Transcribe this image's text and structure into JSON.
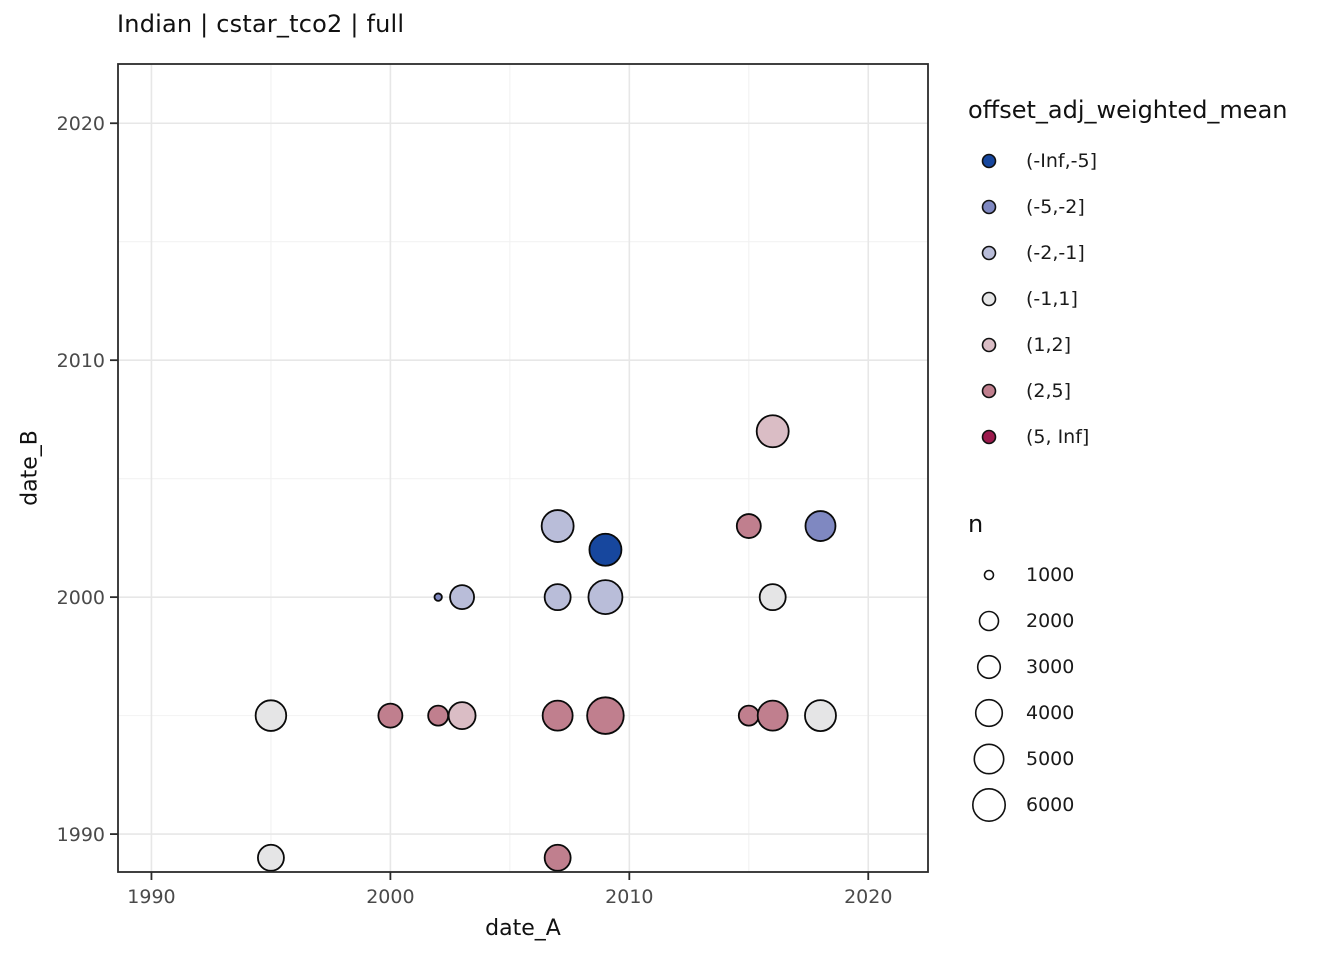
{
  "title": "Indian | cstar_tco2 | full",
  "chart_data": {
    "type": "scatter",
    "title": "Indian | cstar_tco2 | full",
    "xlabel": "date_A",
    "ylabel": "date_B",
    "xlim": [
      1988.6,
      2022.5
    ],
    "ylim": [
      1988.4,
      2022.5
    ],
    "x_major_ticks": [
      1990,
      2000,
      2010,
      2020
    ],
    "y_major_ticks": [
      1990,
      2000,
      2010,
      2020
    ],
    "x_minor_ticks": [
      1995,
      2005,
      2015
    ],
    "y_minor_ticks": [
      1995,
      2005,
      2015
    ],
    "grid": "on",
    "legend_position": "right",
    "points": [
      {
        "date_A": 1995,
        "date_B": 1989,
        "offset_bin": "(-1,1]",
        "n": 3900,
        "radius_px": 13
      },
      {
        "date_A": 2007,
        "date_B": 1989,
        "offset_bin": "(2,5]",
        "n": 3900,
        "radius_px": 13
      },
      {
        "date_A": 1995,
        "date_B": 1995,
        "offset_bin": "(-1,1]",
        "n": 5400,
        "radius_px": 15.3
      },
      {
        "date_A": 2000,
        "date_B": 1995,
        "offset_bin": "(2,5]",
        "n": 3300,
        "radius_px": 12
      },
      {
        "date_A": 2002,
        "date_B": 1995,
        "offset_bin": "(2,5]",
        "n": 2300,
        "radius_px": 10
      },
      {
        "date_A": 2003,
        "date_B": 1995,
        "offset_bin": "(1,2]",
        "n": 4200,
        "radius_px": 13.5
      },
      {
        "date_A": 2007,
        "date_B": 1995,
        "offset_bin": "(2,5]",
        "n": 5200,
        "radius_px": 15
      },
      {
        "date_A": 2009,
        "date_B": 1995,
        "offset_bin": "(2,5]",
        "n": 7700,
        "radius_px": 18.3
      },
      {
        "date_A": 2015,
        "date_B": 1995,
        "offset_bin": "(2,5]",
        "n": 2300,
        "radius_px": 10
      },
      {
        "date_A": 2016,
        "date_B": 1995,
        "offset_bin": "(2,5]",
        "n": 5200,
        "radius_px": 15
      },
      {
        "date_A": 2018,
        "date_B": 1995,
        "offset_bin": "(-1,1]",
        "n": 5500,
        "radius_px": 15.5
      },
      {
        "date_A": 2002,
        "date_B": 2000,
        "offset_bin": "(-5,-2]",
        "n": 300,
        "radius_px": 3.7
      },
      {
        "date_A": 2003,
        "date_B": 2000,
        "offset_bin": "(-2,-1]",
        "n": 3300,
        "radius_px": 12
      },
      {
        "date_A": 2007,
        "date_B": 2000,
        "offset_bin": "(-2,-1]",
        "n": 3900,
        "radius_px": 13
      },
      {
        "date_A": 2009,
        "date_B": 2000,
        "offset_bin": "(-2,-1]",
        "n": 6600,
        "radius_px": 17
      },
      {
        "date_A": 2016,
        "date_B": 2000,
        "offset_bin": "(-1,1]",
        "n": 3900,
        "radius_px": 13
      },
      {
        "date_A": 2009,
        "date_B": 2002,
        "offset_bin": "(-Inf,-5]",
        "n": 5900,
        "radius_px": 16
      },
      {
        "date_A": 2007,
        "date_B": 2003,
        "offset_bin": "(-2,-1]",
        "n": 5900,
        "radius_px": 16
      },
      {
        "date_A": 2015,
        "date_B": 2003,
        "offset_bin": "(2,5]",
        "n": 3300,
        "radius_px": 12
      },
      {
        "date_A": 2018,
        "date_B": 2003,
        "offset_bin": "(-5,-2]",
        "n": 5200,
        "radius_px": 15
      },
      {
        "date_A": 2016,
        "date_B": 2007,
        "offset_bin": "(1,2]",
        "n": 5900,
        "radius_px": 16
      }
    ],
    "color_legend": {
      "title": "offset_adj_weighted_mean",
      "entries": [
        {
          "label": "(-Inf,-5]",
          "color": "#17479e"
        },
        {
          "label": "(-5,-2]",
          "color": "#7f88c1"
        },
        {
          "label": "(-2,-1]",
          "color": "#b9bdd9"
        },
        {
          "label": "(-1,1]",
          "color": "#e5e5e6"
        },
        {
          "label": "(1,2]",
          "color": "#dabdc5"
        },
        {
          "label": "(2,5]",
          "color": "#c07f8e"
        },
        {
          "label": "(5, Inf]",
          "color": "#9c1b4d"
        }
      ]
    },
    "size_legend": {
      "title": "n",
      "entries": [
        {
          "label": "1000",
          "radius_px": 4.5
        },
        {
          "label": "2000",
          "radius_px": 9.5
        },
        {
          "label": "3000",
          "radius_px": 11.3
        },
        {
          "label": "4000",
          "radius_px": 13.3
        },
        {
          "label": "5000",
          "radius_px": 14.7
        },
        {
          "label": "6000",
          "radius_px": 16.2
        }
      ]
    },
    "style": {
      "point_stroke": "#0a0a0a",
      "panel_border": "#2b2b2b",
      "grid_major": "#e7e7e7",
      "grid_minor": "#f2f2f2",
      "tick_label_color": "#4a4a4a",
      "background": "#ffffff"
    }
  }
}
